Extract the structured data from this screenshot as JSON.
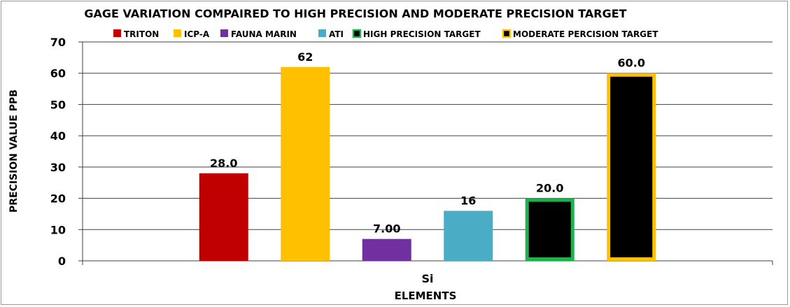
{
  "chart_data": {
    "type": "bar",
    "title": "GAGE  VARIATION COMPAIRED TO HIGH PRECISION AND MODERATE PRECISION TARGET",
    "xlabel": "ELEMENTS",
    "ylabel": "PRECISION VALUE PPB",
    "categories": [
      "Si"
    ],
    "ylim": [
      0,
      70
    ],
    "yticks": [
      "0",
      "10",
      "20",
      "30",
      "40",
      "50",
      "60",
      "70"
    ],
    "grid": true,
    "legend_position": "top",
    "series": [
      {
        "name": "TRITON",
        "value": 28.0,
        "label": "28.0",
        "color": "#c00000",
        "border": ""
      },
      {
        "name": "ICP-A",
        "value": 62,
        "label": "62",
        "color": "#ffc000",
        "border": ""
      },
      {
        "name": "FAUNA MARIN",
        "value": 7.0,
        "label": "7.00",
        "color": "#7030a0",
        "border": ""
      },
      {
        "name": "ATI",
        "value": 16,
        "label": "16",
        "color": "#4bacc6",
        "border": ""
      },
      {
        "name": "HIGH PRECISION TARGET",
        "value": 20.0,
        "label": "20.0",
        "color": "#000000",
        "border": "#1db04c"
      },
      {
        "name": "MODERATE PERCISION TARGET",
        "value": 60.0,
        "label": "60.0",
        "color": "#000000",
        "border": "#ffc000"
      }
    ]
  }
}
